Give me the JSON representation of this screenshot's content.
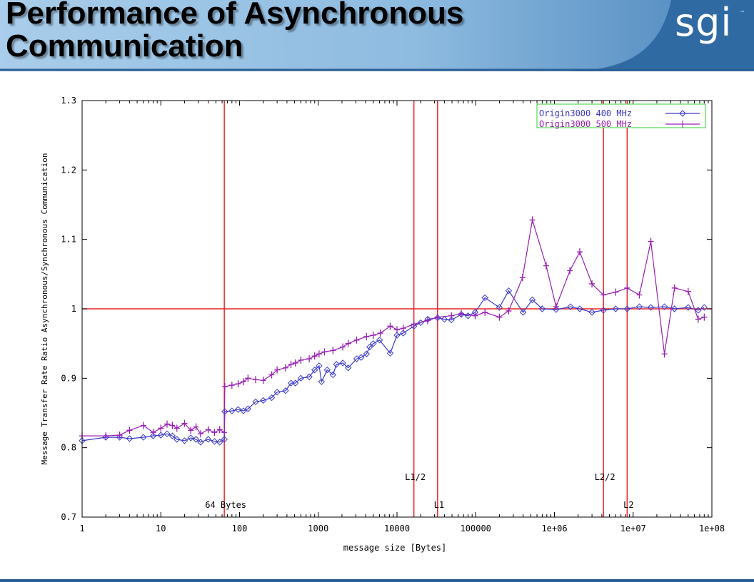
{
  "slide": {
    "title_line1": "Performance of Asynchronous",
    "title_line2": "Communication",
    "logo_text": "sgi",
    "logo_mark": "™"
  },
  "colors": {
    "header_dark": "#2f6aa3",
    "header_light": "#a9cdea",
    "series1": "#3a3acc",
    "series2": "#9a1fb5",
    "ref_lines": "#ee2222",
    "legend_border": "#33cc33"
  },
  "chart_data": {
    "type": "line",
    "xlabel": "message size [Bytes]",
    "ylabel": "Message Transfer Rate Ratio Asynchronous/Synchronous Communication",
    "x_scale": "log",
    "xlim": [
      1,
      100000000
    ],
    "ylim": [
      0.7,
      1.3
    ],
    "x_ticks": [
      1,
      10,
      100,
      1000,
      10000,
      100000,
      1000000,
      10000000,
      100000000
    ],
    "x_tick_labels": [
      "1",
      "10",
      "100",
      "1000",
      "10000",
      "100000",
      "1e+06",
      "1e+07",
      "1e+08"
    ],
    "y_ticks": [
      0.7,
      0.8,
      0.9,
      1.0,
      1.1,
      1.2,
      1.3
    ],
    "y_tick_labels": [
      "0.7",
      "0.8",
      "0.9",
      "1",
      "1.1",
      "1.2",
      "1.3"
    ],
    "grid": false,
    "legend_position": "top-right",
    "reference_lines": {
      "horizontal": [
        1.0
      ],
      "vertical": [
        {
          "x": 64,
          "label": "64 Bytes",
          "label_level": "low"
        },
        {
          "x": 16384,
          "label": "L1/2",
          "label_level": "high"
        },
        {
          "x": 32768,
          "label": "L1",
          "label_level": "low"
        },
        {
          "x": 4194304,
          "label": "L2/2",
          "label_level": "high"
        },
        {
          "x": 8388608,
          "label": "L2",
          "label_level": "low"
        }
      ]
    },
    "series": [
      {
        "name": "Origin3000 400 MHz",
        "marker": "diamond",
        "points": [
          [
            1,
            0.81
          ],
          [
            2,
            0.815
          ],
          [
            3,
            0.815
          ],
          [
            4,
            0.813
          ],
          [
            6,
            0.815
          ],
          [
            8,
            0.817
          ],
          [
            10,
            0.818
          ],
          [
            12,
            0.82
          ],
          [
            14,
            0.817
          ],
          [
            16,
            0.812
          ],
          [
            20,
            0.81
          ],
          [
            24,
            0.814
          ],
          [
            28,
            0.812
          ],
          [
            32,
            0.808
          ],
          [
            40,
            0.812
          ],
          [
            48,
            0.809
          ],
          [
            56,
            0.808
          ],
          [
            64,
            0.812
          ],
          [
            65,
            0.852
          ],
          [
            80,
            0.853
          ],
          [
            96,
            0.855
          ],
          [
            112,
            0.853
          ],
          [
            128,
            0.856
          ],
          [
            160,
            0.866
          ],
          [
            200,
            0.868
          ],
          [
            256,
            0.872
          ],
          [
            300,
            0.88
          ],
          [
            384,
            0.882
          ],
          [
            450,
            0.893
          ],
          [
            512,
            0.893
          ],
          [
            600,
            0.9
          ],
          [
            768,
            0.902
          ],
          [
            900,
            0.912
          ],
          [
            1024,
            0.918
          ],
          [
            1100,
            0.895
          ],
          [
            1300,
            0.912
          ],
          [
            1536,
            0.905
          ],
          [
            1700,
            0.92
          ],
          [
            2048,
            0.922
          ],
          [
            2400,
            0.915
          ],
          [
            3072,
            0.928
          ],
          [
            3500,
            0.93
          ],
          [
            4096,
            0.935
          ],
          [
            4500,
            0.945
          ],
          [
            5000,
            0.95
          ],
          [
            6000,
            0.955
          ],
          [
            8192,
            0.936
          ],
          [
            10000,
            0.962
          ],
          [
            12000,
            0.965
          ],
          [
            16384,
            0.975
          ],
          [
            20000,
            0.98
          ],
          [
            24576,
            0.985
          ],
          [
            32768,
            0.987
          ],
          [
            40000,
            0.985
          ],
          [
            49152,
            0.984
          ],
          [
            65536,
            0.992
          ],
          [
            80000,
            0.99
          ],
          [
            98304,
            0.995
          ],
          [
            131072,
            1.016
          ],
          [
            200000,
            1.002
          ],
          [
            262144,
            1.026
          ],
          [
            400000,
            0.995
          ],
          [
            524288,
            1.013
          ],
          [
            700000,
            1.0
          ],
          [
            1048576,
            0.999
          ],
          [
            1600000,
            1.003
          ],
          [
            2097152,
            1.0
          ],
          [
            3000000,
            0.995
          ],
          [
            4194304,
            0.998
          ],
          [
            6000000,
            1.0
          ],
          [
            8388608,
            1.0
          ],
          [
            12000000,
            1.003
          ],
          [
            16777216,
            1.002
          ],
          [
            25000000,
            1.003
          ],
          [
            33554432,
            1.0
          ],
          [
            50000000,
            1.002
          ],
          [
            67108864,
            0.998
          ],
          [
            80000000,
            1.002
          ]
        ]
      },
      {
        "name": "Origin3000 500 MHz",
        "marker": "plus",
        "points": [
          [
            1,
            0.817
          ],
          [
            2,
            0.817
          ],
          [
            3,
            0.818
          ],
          [
            4,
            0.825
          ],
          [
            6,
            0.832
          ],
          [
            8,
            0.822
          ],
          [
            10,
            0.828
          ],
          [
            12,
            0.834
          ],
          [
            14,
            0.832
          ],
          [
            16,
            0.828
          ],
          [
            20,
            0.835
          ],
          [
            24,
            0.825
          ],
          [
            28,
            0.83
          ],
          [
            32,
            0.82
          ],
          [
            40,
            0.826
          ],
          [
            48,
            0.822
          ],
          [
            56,
            0.826
          ],
          [
            64,
            0.822
          ],
          [
            65,
            0.888
          ],
          [
            80,
            0.89
          ],
          [
            96,
            0.892
          ],
          [
            112,
            0.895
          ],
          [
            128,
            0.9
          ],
          [
            160,
            0.898
          ],
          [
            200,
            0.897
          ],
          [
            256,
            0.905
          ],
          [
            300,
            0.912
          ],
          [
            384,
            0.915
          ],
          [
            450,
            0.92
          ],
          [
            512,
            0.922
          ],
          [
            600,
            0.926
          ],
          [
            768,
            0.928
          ],
          [
            900,
            0.932
          ],
          [
            1024,
            0.935
          ],
          [
            1200,
            0.938
          ],
          [
            1536,
            0.94
          ],
          [
            2048,
            0.945
          ],
          [
            2400,
            0.95
          ],
          [
            3072,
            0.955
          ],
          [
            4096,
            0.96
          ],
          [
            5000,
            0.962
          ],
          [
            6144,
            0.965
          ],
          [
            8192,
            0.975
          ],
          [
            10000,
            0.97
          ],
          [
            12000,
            0.972
          ],
          [
            16384,
            0.978
          ],
          [
            24576,
            0.983
          ],
          [
            32768,
            0.988
          ],
          [
            49152,
            0.99
          ],
          [
            65536,
            0.993
          ],
          [
            98304,
            0.99
          ],
          [
            131072,
            0.995
          ],
          [
            200000,
            0.988
          ],
          [
            262144,
            0.997
          ],
          [
            393216,
            1.045
          ],
          [
            524288,
            1.128
          ],
          [
            786432,
            1.062
          ],
          [
            1048576,
            1.003
          ],
          [
            1572864,
            1.055
          ],
          [
            2097152,
            1.082
          ],
          [
            3000000,
            1.036
          ],
          [
            4194304,
            1.02
          ],
          [
            6000000,
            1.024
          ],
          [
            8388608,
            1.03
          ],
          [
            12000000,
            1.02
          ],
          [
            16777216,
            1.097
          ],
          [
            25000000,
            0.935
          ],
          [
            33554432,
            1.03
          ],
          [
            50000000,
            1.025
          ],
          [
            67108864,
            0.985
          ],
          [
            80000000,
            0.988
          ]
        ]
      }
    ]
  }
}
